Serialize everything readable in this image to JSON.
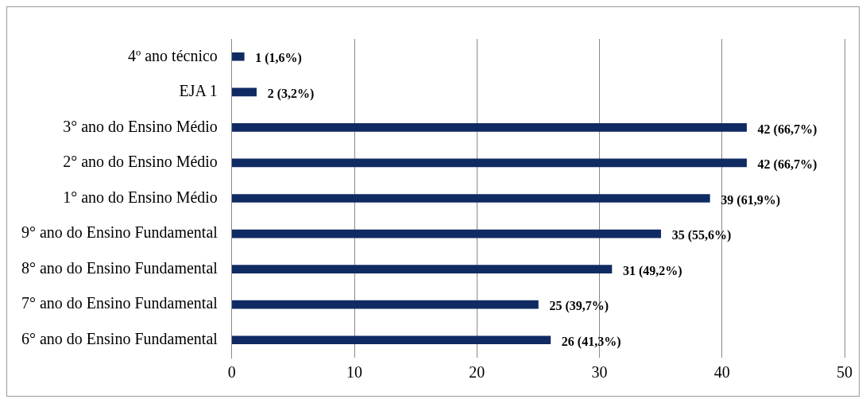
{
  "chart_data": {
    "type": "bar",
    "orientation": "horizontal",
    "categories": [
      "4º ano técnico",
      "EJA 1",
      "3° ano do Ensino Médio",
      "2° ano do Ensino Médio",
      "1° ano do Ensino Médio",
      "9° ano do Ensino Fundamental",
      "8° ano do Ensino Fundamental",
      "7° ano do Ensino Fundamental",
      "6° ano do Ensino Fundamental"
    ],
    "values": [
      1,
      2,
      42,
      42,
      39,
      35,
      31,
      25,
      26
    ],
    "value_labels": [
      "1 (1,6%)",
      "2 (3,2%)",
      "42 (66,7%)",
      "42 (66,7%)",
      "39 (61,9%)",
      "35 (55,6%)",
      "31 (49,2%)",
      "25 (39,7%)",
      "26 (41,3%)"
    ],
    "color": "#102a63",
    "xlim": [
      0,
      50
    ],
    "xticks": [
      0,
      10,
      20,
      30,
      40,
      50
    ],
    "grid": "x"
  }
}
